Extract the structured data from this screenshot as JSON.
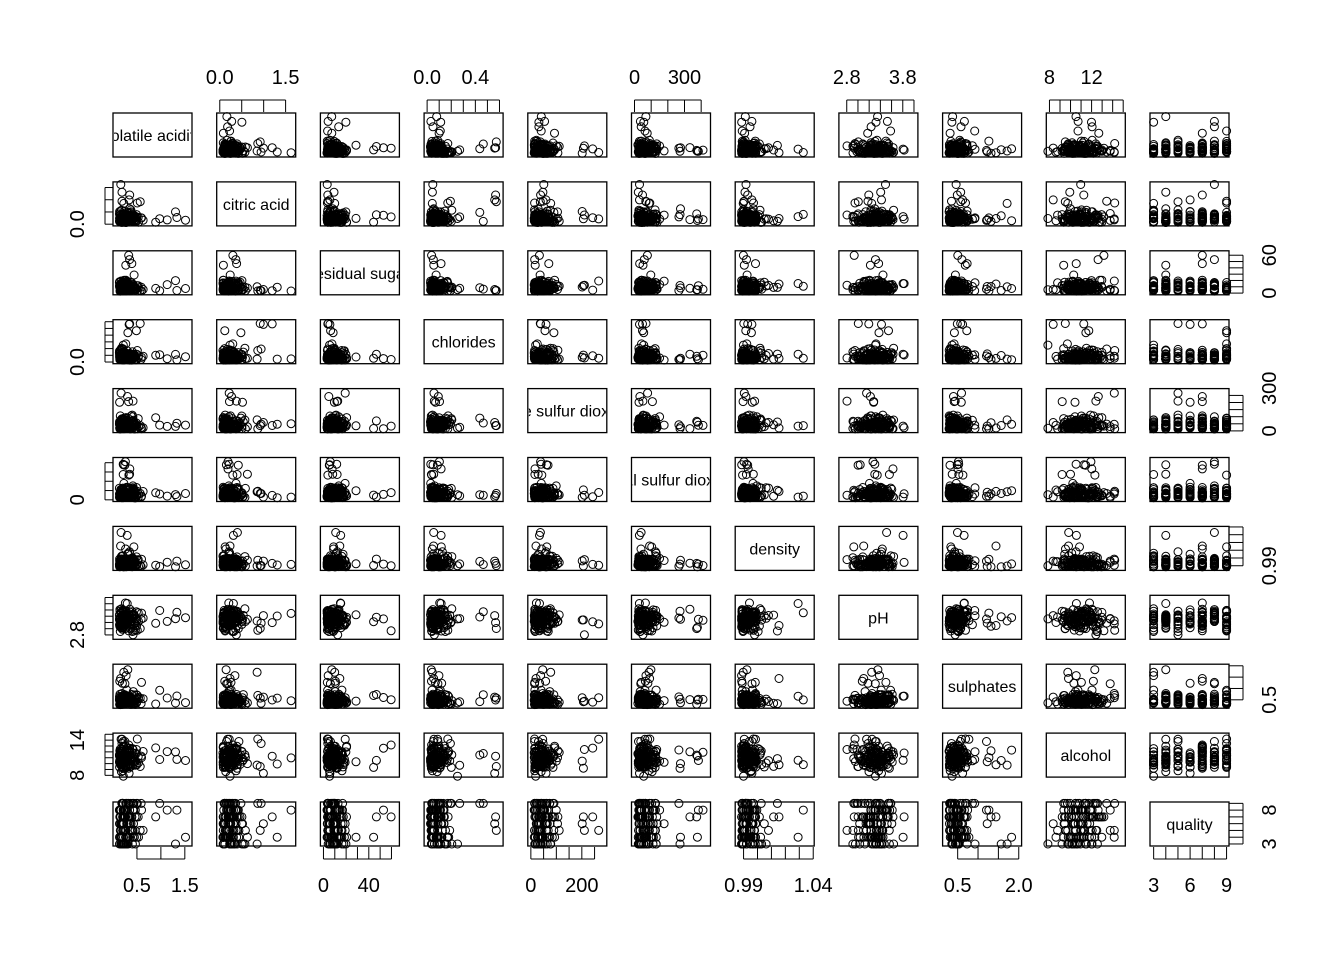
{
  "chart_data": {
    "type": "scatter-matrix",
    "title": "",
    "point_style": "open circle",
    "color": "#000000",
    "variables": [
      {
        "name": "volatile acidity",
        "range": [
          0,
          1.65
        ],
        "ticks": [
          0.5,
          1.0,
          1.5
        ],
        "tick_labels": [
          "0.5",
          "1.5"
        ],
        "tick_label_values": [
          0.5,
          1.5
        ],
        "axis": "bottom"
      },
      {
        "name": "citric acid",
        "range": [
          -0.07,
          1.73
        ],
        "ticks": [
          0,
          0.5,
          1.0,
          1.5
        ],
        "tick_labels": [
          "0.0",
          "1.5"
        ],
        "tick_label_values": [
          0,
          1.5
        ],
        "axis": "top",
        "side_labels": [
          "0.0"
        ],
        "side_label_values": [
          0
        ],
        "side": "left"
      },
      {
        "name": "residual sugar",
        "range": [
          -2.7,
          67
        ],
        "ticks": [
          0,
          10,
          20,
          30,
          40,
          50,
          60
        ],
        "tick_labels": [
          "0",
          "40"
        ],
        "tick_label_values": [
          0,
          40
        ],
        "axis": "bottom",
        "side_labels": [
          "0",
          "60"
        ],
        "side_label_values": [
          0,
          60
        ],
        "side": "right"
      },
      {
        "name": "chlorides",
        "range": [
          -0.025,
          0.63
        ],
        "ticks": [
          0,
          0.1,
          0.2,
          0.3,
          0.4,
          0.5,
          0.6
        ],
        "tick_labels": [
          "0.0",
          "0.4"
        ],
        "tick_label_values": [
          0,
          0.4
        ],
        "axis": "top",
        "side_labels": [
          "0.0"
        ],
        "side_label_values": [
          0
        ],
        "side": "left"
      },
      {
        "name": "free sulfur dioxide",
        "range": [
          -12,
          298
        ],
        "ticks": [
          0,
          50,
          100,
          150,
          200,
          250
        ],
        "tick_labels": [
          "0",
          "200"
        ],
        "tick_label_values": [
          0,
          200
        ],
        "axis": "bottom",
        "side_labels": [
          "0",
          "300"
        ],
        "side_label_values": [
          0,
          300
        ],
        "side": "right"
      },
      {
        "name": "total sulfur dioxide",
        "range": [
          -18,
          456
        ],
        "ticks": [
          0,
          100,
          200,
          300,
          400
        ],
        "tick_labels": [
          "0",
          "300"
        ],
        "tick_label_values": [
          0,
          300
        ],
        "axis": "top",
        "side_labels": [
          "0"
        ],
        "side_label_values": [
          0
        ],
        "side": "left"
      },
      {
        "name": "density",
        "range": [
          0.984,
          1.0407
        ],
        "ticks": [
          0.99,
          1.0,
          1.01,
          1.02,
          1.03,
          1.04
        ],
        "tick_labels": [
          "0.99",
          "1.04"
        ],
        "tick_label_values": [
          0.99,
          1.04
        ],
        "axis": "bottom",
        "side_labels": [
          "0.99"
        ],
        "side_label_values": [
          0.99
        ],
        "side": "right"
      },
      {
        "name": "pH",
        "range": [
          2.66,
          4.07
        ],
        "ticks": [
          2.8,
          3.0,
          3.2,
          3.4,
          3.6,
          3.8,
          4.0
        ],
        "tick_labels": [
          "2.8",
          "3.8"
        ],
        "tick_label_values": [
          2.8,
          3.8
        ],
        "axis": "top",
        "side_labels": [
          "2.8"
        ],
        "side_label_values": [
          2.8
        ],
        "side": "left"
      },
      {
        "name": "sulphates",
        "range": [
          0.13,
          2.07
        ],
        "ticks": [
          0.5,
          1.0,
          1.5,
          2.0
        ],
        "tick_labels": [
          "0.5",
          "2.0"
        ],
        "tick_label_values": [
          0.5,
          2.0
        ],
        "axis": "bottom",
        "side_labels": [
          "0.5"
        ],
        "side_label_values": [
          0.5
        ],
        "side": "right"
      },
      {
        "name": "alcohol",
        "range": [
          7.7,
          15.2
        ],
        "ticks": [
          8,
          9,
          10,
          11,
          12,
          13,
          14,
          15
        ],
        "tick_labels": [
          "8",
          "12"
        ],
        "tick_label_values": [
          8,
          12
        ],
        "axis": "top",
        "side_labels": [
          "8",
          "14"
        ],
        "side_label_values": [
          8,
          14
        ],
        "side": "left"
      },
      {
        "name": "quality",
        "range": [
          2.7,
          9.2
        ],
        "ticks": [
          3,
          4,
          5,
          6,
          7,
          8,
          9
        ],
        "tick_labels": [
          "3",
          "6",
          "9"
        ],
        "tick_label_values": [
          3,
          6,
          9
        ],
        "axis": "bottom",
        "side_labels": [
          "3",
          "8"
        ],
        "side_label_values": [
          3,
          8
        ],
        "side": "right"
      }
    ]
  }
}
